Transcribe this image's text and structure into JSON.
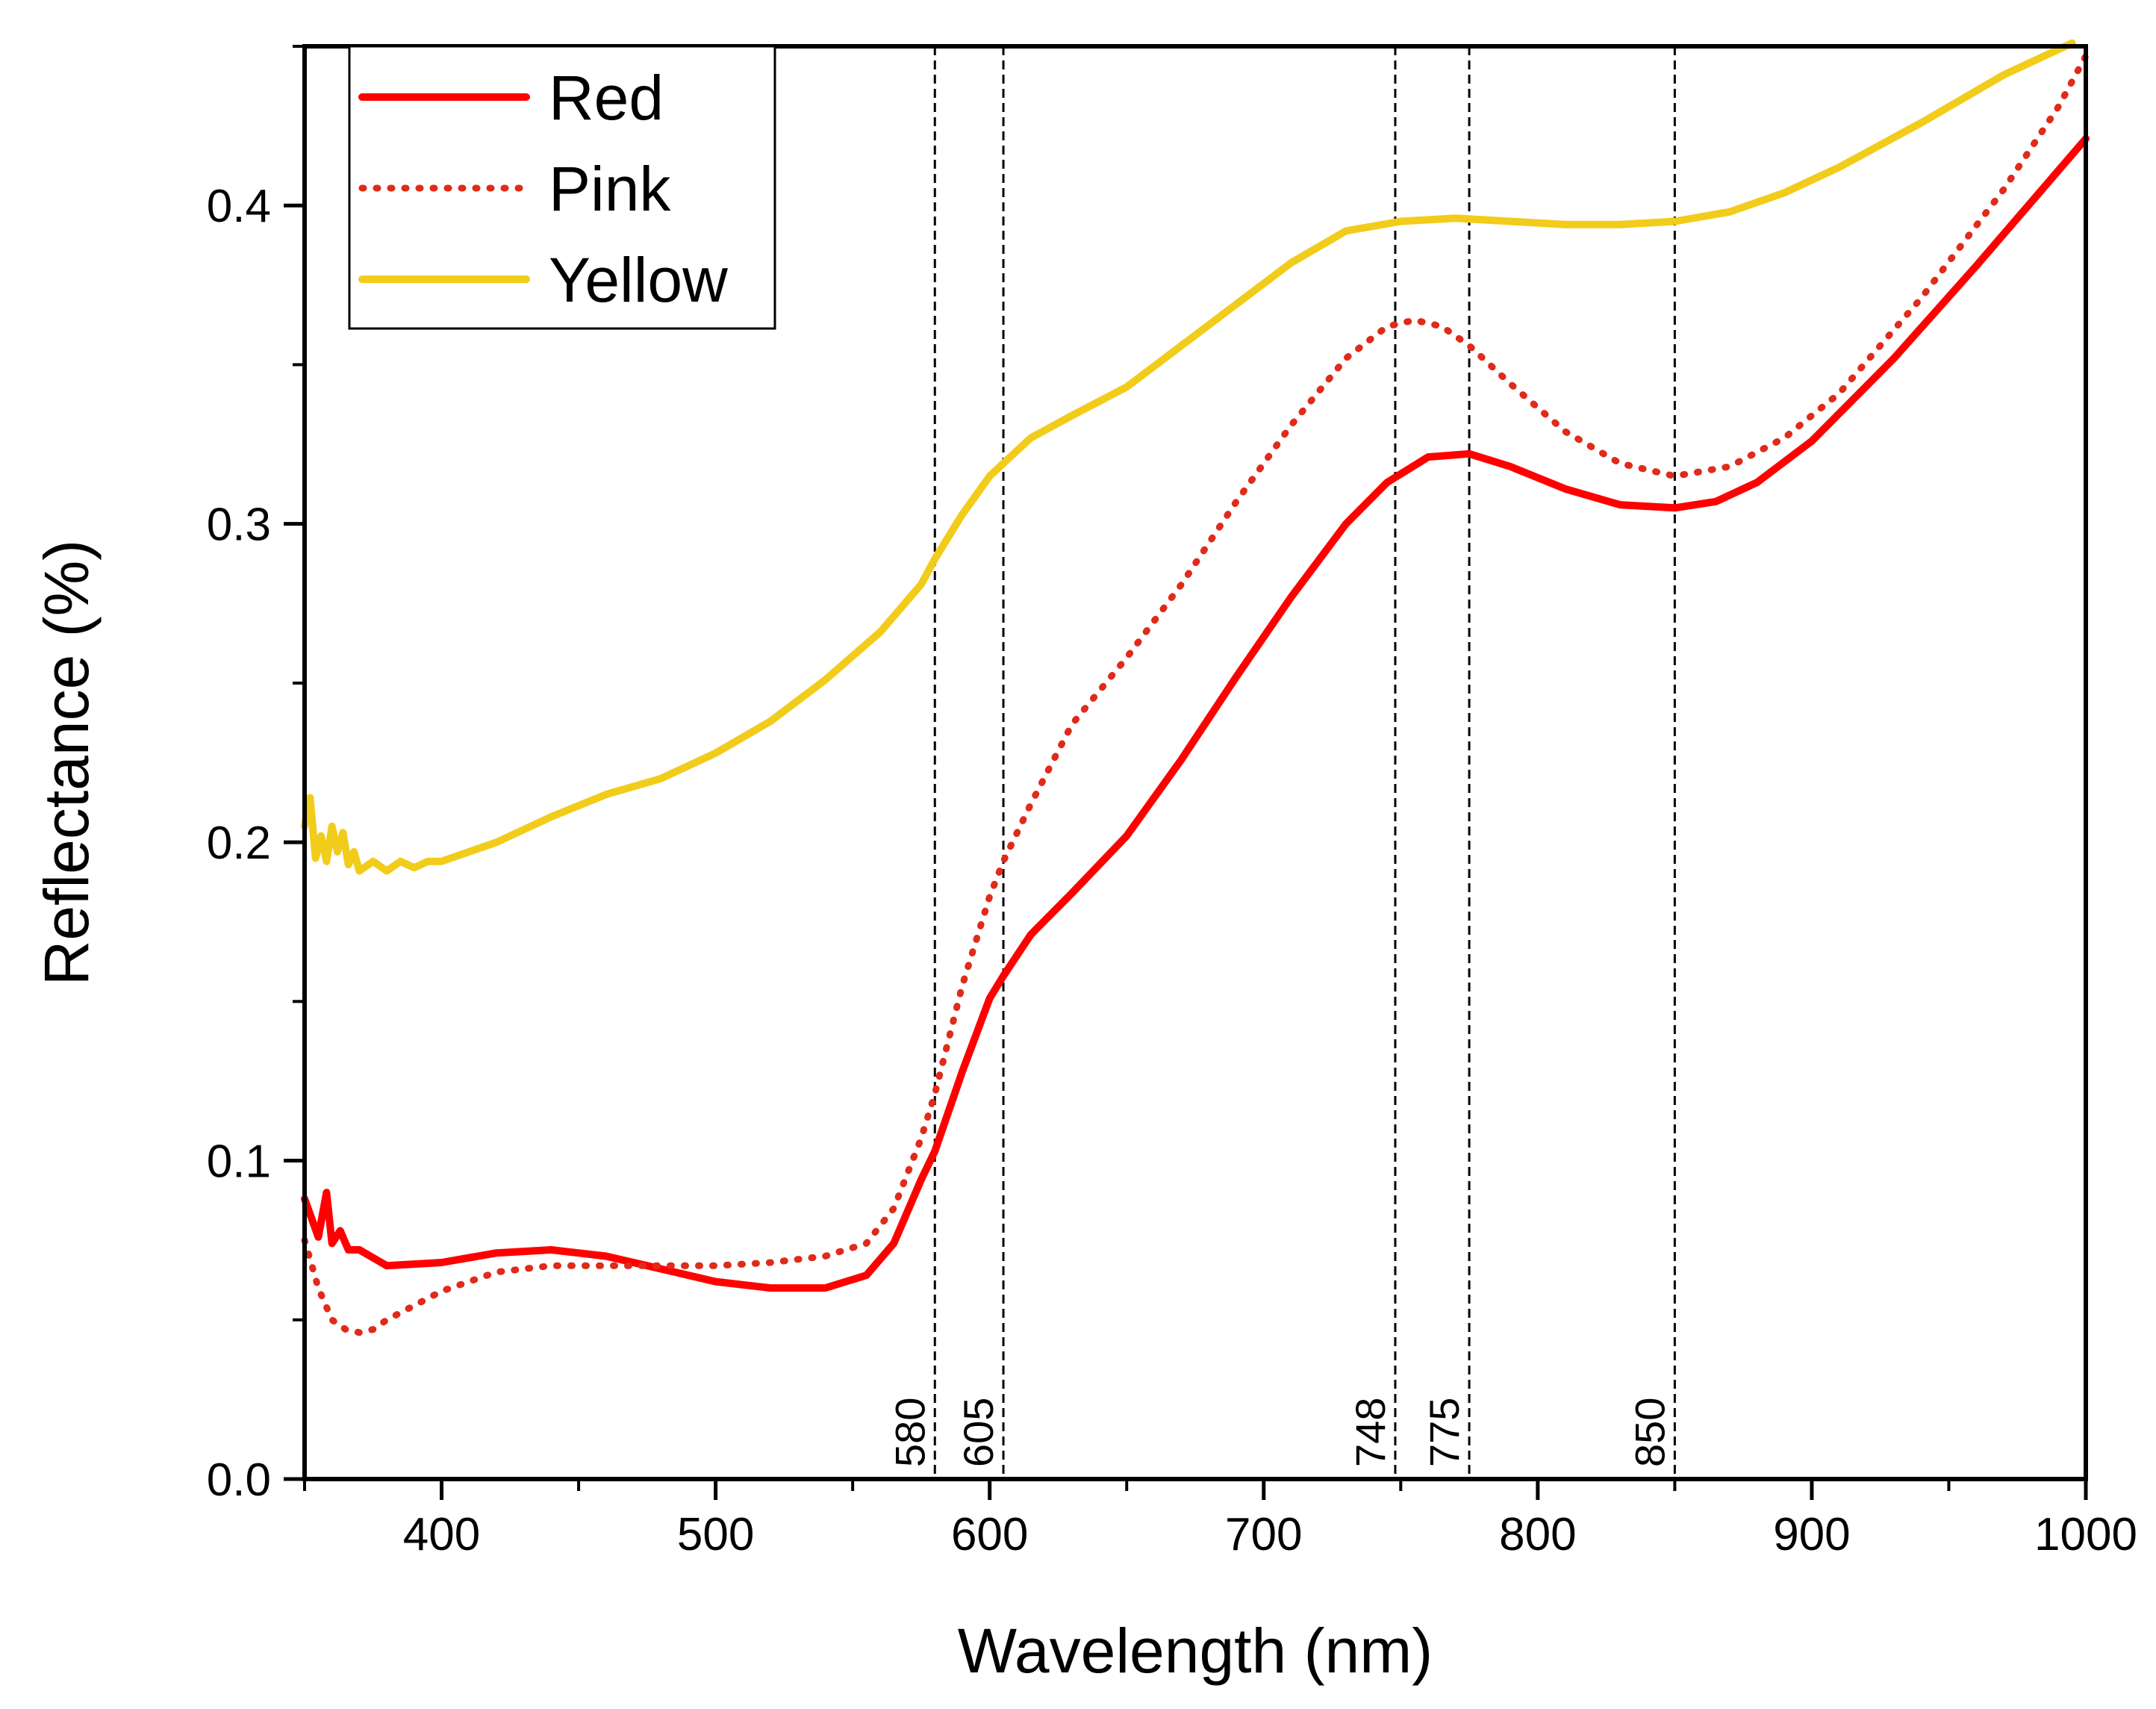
{
  "chart_data": {
    "type": "line",
    "title": "",
    "xlabel": "Wavelength (nm)",
    "ylabel": "Reflectance (%)",
    "xlim": [
      350,
      1000
    ],
    "ylim": [
      0,
      0.45
    ],
    "x_ticks": [
      400,
      500,
      600,
      700,
      800,
      900,
      1000
    ],
    "x_tick_labels": [
      "400",
      "500",
      "600",
      "700",
      "800",
      "900",
      "1000"
    ],
    "y_ticks": [
      0.0,
      0.1,
      0.2,
      0.3,
      0.4
    ],
    "y_tick_labels": [
      "0.0",
      "0.1",
      "0.2",
      "0.3",
      "0.4"
    ],
    "legend_position": "top-left",
    "grid": false,
    "reference_lines": [
      {
        "x": 580,
        "label": "580"
      },
      {
        "x": 605,
        "label": "605"
      },
      {
        "x": 748,
        "label": "748"
      },
      {
        "x": 775,
        "label": "775"
      },
      {
        "x": 850,
        "label": "850"
      }
    ],
    "series": [
      {
        "name": "Red",
        "color": "#ff0000",
        "style": "solid",
        "x": [
          350,
          355,
          358,
          360,
          363,
          366,
          370,
          380,
          400,
          420,
          440,
          460,
          480,
          500,
          520,
          540,
          555,
          565,
          575,
          580,
          590,
          600,
          605,
          615,
          630,
          650,
          670,
          690,
          710,
          730,
          745,
          760,
          775,
          790,
          810,
          830,
          850,
          865,
          880,
          900,
          930,
          960,
          980,
          1000
        ],
        "values": [
          0.088,
          0.076,
          0.09,
          0.074,
          0.078,
          0.072,
          0.072,
          0.067,
          0.068,
          0.071,
          0.072,
          0.07,
          0.066,
          0.062,
          0.06,
          0.06,
          0.064,
          0.074,
          0.094,
          0.103,
          0.128,
          0.151,
          0.158,
          0.171,
          0.184,
          0.202,
          0.226,
          0.252,
          0.277,
          0.3,
          0.313,
          0.321,
          0.322,
          0.318,
          0.311,
          0.306,
          0.305,
          0.307,
          0.313,
          0.326,
          0.352,
          0.381,
          0.401,
          0.421
        ]
      },
      {
        "name": "Pink",
        "color": "#e02a1a",
        "style": "dotted",
        "x": [
          350,
          355,
          360,
          365,
          370,
          375,
          380,
          400,
          420,
          440,
          460,
          480,
          500,
          520,
          540,
          555,
          565,
          575,
          580,
          590,
          600,
          605,
          615,
          630,
          650,
          670,
          690,
          710,
          730,
          745,
          755,
          765,
          775,
          790,
          810,
          830,
          850,
          870,
          890,
          910,
          940,
          970,
          990,
          1000
        ],
        "values": [
          0.075,
          0.06,
          0.05,
          0.047,
          0.046,
          0.047,
          0.05,
          0.059,
          0.065,
          0.067,
          0.067,
          0.067,
          0.067,
          0.068,
          0.07,
          0.074,
          0.085,
          0.107,
          0.121,
          0.155,
          0.183,
          0.194,
          0.212,
          0.237,
          0.258,
          0.281,
          0.307,
          0.331,
          0.352,
          0.362,
          0.364,
          0.362,
          0.356,
          0.344,
          0.329,
          0.319,
          0.315,
          0.318,
          0.327,
          0.341,
          0.371,
          0.405,
          0.431,
          0.447
        ]
      },
      {
        "name": "Yellow",
        "color": "#f2cc1a",
        "style": "solid",
        "x": [
          350,
          352,
          354,
          356,
          358,
          360,
          362,
          364,
          366,
          368,
          370,
          375,
          380,
          385,
          390,
          395,
          400,
          420,
          440,
          460,
          480,
          500,
          520,
          540,
          560,
          575,
          580,
          590,
          600,
          605,
          615,
          630,
          650,
          670,
          690,
          710,
          730,
          750,
          770,
          790,
          810,
          830,
          850,
          870,
          890,
          910,
          940,
          970,
          995
        ],
        "values": [
          0.205,
          0.214,
          0.195,
          0.202,
          0.194,
          0.205,
          0.197,
          0.203,
          0.193,
          0.197,
          0.191,
          0.194,
          0.191,
          0.194,
          0.192,
          0.194,
          0.194,
          0.2,
          0.208,
          0.215,
          0.22,
          0.228,
          0.238,
          0.251,
          0.266,
          0.281,
          0.289,
          0.303,
          0.315,
          0.319,
          0.327,
          0.334,
          0.343,
          0.356,
          0.369,
          0.382,
          0.392,
          0.395,
          0.396,
          0.395,
          0.394,
          0.394,
          0.395,
          0.398,
          0.404,
          0.412,
          0.426,
          0.441,
          0.451
        ]
      }
    ]
  }
}
